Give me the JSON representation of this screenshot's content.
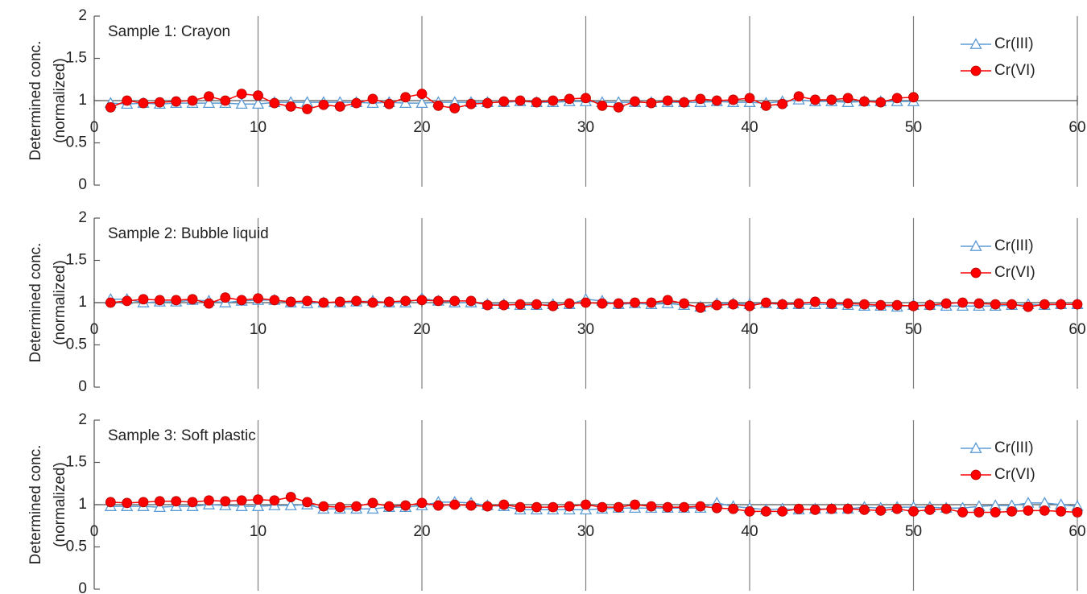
{
  "chart_data": [
    {
      "type": "line",
      "title": "Sample 1: Crayon",
      "ylabel": [
        "Determined conc.",
        "(normalized)"
      ],
      "x": [
        1,
        2,
        3,
        4,
        5,
        6,
        7,
        8,
        9,
        10,
        11,
        12,
        13,
        14,
        15,
        16,
        17,
        18,
        19,
        20,
        21,
        22,
        23,
        24,
        25,
        26,
        27,
        28,
        29,
        30,
        31,
        32,
        33,
        34,
        35,
        36,
        37,
        38,
        39,
        40,
        41,
        42,
        43,
        44,
        45,
        46,
        47,
        48,
        49,
        50
      ],
      "series": [
        {
          "name": "Cr(III)",
          "color": "#5b9bd5",
          "marker": "triangle",
          "values": [
            0.97,
            0.96,
            0.97,
            0.96,
            0.97,
            0.97,
            0.97,
            0.97,
            0.96,
            0.96,
            0.98,
            0.98,
            0.98,
            0.98,
            0.98,
            0.98,
            0.97,
            0.98,
            0.97,
            0.97,
            0.98,
            0.98,
            0.98,
            0.98,
            0.98,
            0.99,
            0.98,
            0.98,
            0.99,
            0.99,
            0.98,
            0.98,
            0.98,
            0.98,
            0.98,
            0.98,
            0.98,
            0.99,
            0.98,
            0.98,
            0.97,
            0.99,
            1.01,
            0.99,
            0.99,
            0.98,
            0.99,
            0.99,
            0.99,
            0.99
          ]
        },
        {
          "name": "Cr(VI)",
          "color": "#ff0000",
          "marker": "circle",
          "values": [
            0.92,
            1.0,
            0.97,
            0.98,
            0.99,
            1.0,
            1.05,
            1.0,
            1.08,
            1.06,
            0.97,
            0.93,
            0.9,
            0.95,
            0.93,
            0.97,
            1.02,
            0.96,
            1.04,
            1.08,
            0.94,
            0.91,
            0.96,
            0.97,
            0.99,
            1.0,
            0.98,
            1.0,
            1.02,
            1.03,
            0.94,
            0.92,
            0.99,
            0.97,
            1.0,
            0.98,
            1.02,
            1.0,
            1.01,
            1.03,
            0.94,
            0.96,
            1.05,
            1.01,
            1.01,
            1.03,
            0.99,
            0.98,
            1.03,
            1.04
          ]
        }
      ],
      "xlim": [
        0,
        60
      ],
      "xticks": [
        0,
        10,
        20,
        30,
        40,
        50,
        60
      ],
      "ylim": [
        0,
        2
      ],
      "yticks": [
        0,
        0.5,
        1,
        1.5,
        2
      ],
      "x_axis_crossing": 1,
      "grid": "x",
      "legend": "upper right"
    },
    {
      "type": "line",
      "title": "Sample 2: Bubble liquid",
      "ylabel": [
        "Determined conc.",
        "(normalized)"
      ],
      "x": [
        1,
        2,
        3,
        4,
        5,
        6,
        7,
        8,
        9,
        10,
        11,
        12,
        13,
        14,
        15,
        16,
        17,
        18,
        19,
        20,
        21,
        22,
        23,
        24,
        25,
        26,
        27,
        28,
        29,
        30,
        31,
        32,
        33,
        34,
        35,
        36,
        37,
        38,
        39,
        40,
        41,
        42,
        43,
        44,
        45,
        46,
        47,
        48,
        49,
        50,
        51,
        52,
        53,
        54,
        55,
        56,
        57,
        58,
        59,
        60
      ],
      "series": [
        {
          "name": "Cr(III)",
          "color": "#5b9bd5",
          "marker": "triangle",
          "values": [
            1.04,
            1.04,
            1.0,
            1.01,
            1.01,
            1.03,
            1.02,
            1.0,
            1.02,
            1.03,
            1.03,
            1.0,
            0.99,
            1.0,
            1.0,
            1.01,
            1.02,
            1.0,
            1.0,
            1.05,
            1.02,
            1.0,
            1.0,
            0.98,
            0.98,
            0.97,
            0.97,
            0.98,
            0.98,
            1.04,
            1.02,
            0.98,
            0.99,
            0.98,
            0.99,
            0.97,
            0.95,
            0.99,
            0.99,
            0.98,
            0.99,
            0.98,
            0.98,
            0.98,
            0.98,
            0.97,
            0.96,
            0.96,
            0.95,
            0.97,
            0.97,
            0.96,
            0.96,
            0.96,
            0.96,
            0.97,
            0.98,
            0.97,
            0.98,
            0.98
          ]
        },
        {
          "name": "Cr(VI)",
          "color": "#ff0000",
          "marker": "circle",
          "values": [
            1.0,
            1.02,
            1.04,
            1.03,
            1.03,
            1.04,
            0.99,
            1.06,
            1.03,
            1.05,
            1.03,
            1.01,
            1.02,
            1.0,
            1.01,
            1.02,
            1.0,
            1.01,
            1.02,
            1.03,
            1.02,
            1.02,
            1.02,
            0.97,
            0.97,
            0.98,
            0.98,
            0.96,
            0.99,
            1.0,
            0.99,
            0.99,
            1.0,
            1.0,
            1.03,
            0.99,
            0.94,
            0.97,
            0.98,
            0.96,
            1.0,
            0.98,
            0.99,
            1.01,
            0.99,
            0.99,
            0.98,
            0.97,
            0.97,
            0.96,
            0.97,
            0.99,
            1.0,
            0.99,
            0.98,
            0.98,
            0.95,
            0.98,
            0.98,
            0.98
          ]
        }
      ],
      "xlim": [
        0,
        60
      ],
      "xticks": [
        0,
        10,
        20,
        30,
        40,
        50,
        60
      ],
      "ylim": [
        0,
        2
      ],
      "yticks": [
        0,
        0.5,
        1,
        1.5,
        2
      ],
      "x_axis_crossing": 1,
      "grid": "x",
      "legend": "upper right"
    },
    {
      "type": "line",
      "title": "Sample 3: Soft plastic",
      "ylabel": [
        "Determined conc.",
        "(normalized)"
      ],
      "x": [
        1,
        2,
        3,
        4,
        5,
        6,
        7,
        8,
        9,
        10,
        11,
        12,
        13,
        14,
        15,
        16,
        17,
        18,
        19,
        20,
        21,
        22,
        23,
        24,
        25,
        26,
        27,
        28,
        29,
        30,
        31,
        32,
        33,
        34,
        35,
        36,
        37,
        38,
        39,
        40,
        41,
        42,
        43,
        44,
        45,
        46,
        47,
        48,
        49,
        50,
        51,
        52,
        53,
        54,
        55,
        56,
        57,
        58,
        59,
        60
      ],
      "series": [
        {
          "name": "Cr(III)",
          "color": "#5b9bd5",
          "marker": "triangle",
          "values": [
            0.98,
            0.98,
            0.98,
            0.97,
            0.98,
            0.98,
            1.0,
            0.99,
            0.98,
            0.98,
            0.99,
            0.99,
            1.0,
            0.95,
            0.95,
            0.95,
            0.95,
            0.97,
            0.97,
            0.99,
            1.03,
            1.03,
            1.02,
            0.99,
            0.98,
            0.94,
            0.94,
            0.94,
            0.94,
            0.94,
            0.95,
            0.96,
            0.96,
            0.96,
            0.96,
            0.96,
            0.96,
            1.02,
            0.98,
            0.96,
            0.94,
            0.95,
            0.94,
            0.95,
            0.95,
            0.95,
            0.97,
            0.96,
            0.97,
            0.97,
            0.97,
            0.96,
            0.96,
            0.98,
            0.99,
            0.99,
            1.02,
            1.02,
            1.0,
            0.98
          ]
        },
        {
          "name": "Cr(VI)",
          "color": "#ff0000",
          "marker": "circle",
          "values": [
            1.03,
            1.02,
            1.03,
            1.04,
            1.04,
            1.03,
            1.05,
            1.04,
            1.05,
            1.06,
            1.05,
            1.09,
            1.03,
            0.98,
            0.97,
            0.98,
            1.02,
            0.98,
            0.99,
            1.02,
            0.99,
            1.0,
            0.99,
            0.98,
            1.0,
            0.97,
            0.97,
            0.97,
            0.98,
            1.0,
            0.97,
            0.97,
            1.0,
            0.98,
            0.97,
            0.97,
            0.98,
            0.96,
            0.95,
            0.92,
            0.92,
            0.92,
            0.95,
            0.94,
            0.95,
            0.95,
            0.94,
            0.93,
            0.95,
            0.92,
            0.94,
            0.95,
            0.91,
            0.91,
            0.91,
            0.92,
            0.93,
            0.93,
            0.92,
            0.91
          ]
        }
      ],
      "xlim": [
        0,
        60
      ],
      "xticks": [
        0,
        10,
        20,
        30,
        40,
        50,
        60
      ],
      "ylim": [
        0,
        2
      ],
      "yticks": [
        0,
        0.5,
        1,
        1.5,
        2
      ],
      "x_axis_crossing": 1,
      "grid": "x",
      "legend": "upper right"
    }
  ]
}
